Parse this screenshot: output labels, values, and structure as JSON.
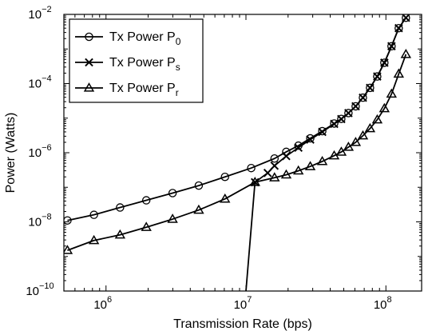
{
  "chart_data": {
    "type": "line",
    "xlabel": "Transmission Rate (bps)",
    "ylabel": "Power (Watts)",
    "x_scale": "log",
    "y_scale": "log",
    "xlim": [
      500000,
      180000000
    ],
    "ylim": [
      1e-10,
      0.01
    ],
    "x_ticks": [
      {
        "value": 1000000,
        "base": "10",
        "exp": "6"
      },
      {
        "value": 10000000,
        "base": "10",
        "exp": "7"
      },
      {
        "value": 100000000,
        "base": "10",
        "exp": "8"
      }
    ],
    "y_ticks": [
      {
        "value": 1e-10,
        "base": "10",
        "exp": "−10"
      },
      {
        "value": 1e-08,
        "base": "10",
        "exp": "−8"
      },
      {
        "value": 1e-06,
        "base": "10",
        "exp": "−6"
      },
      {
        "value": 0.0001,
        "base": "10",
        "exp": "−4"
      },
      {
        "value": 0.01,
        "base": "10",
        "exp": "−2"
      }
    ],
    "grid": false,
    "legend_position": "top-left",
    "series": [
      {
        "name": "Tx Power P",
        "subscript": "0",
        "marker": "circle",
        "color": "#000000",
        "x": [
          530000,
          820000,
          1260000,
          1940000,
          2990000,
          4600000,
          7080000,
          10900000,
          16000000,
          19400000,
          23700000,
          28800000,
          35100000,
          42700000,
          48000000,
          54000000,
          60800000,
          68500000,
          77000000,
          86700000,
          97500000,
          109700000,
          123500000,
          139000000
        ],
        "y": [
          1.1e-08,
          1.6e-08,
          2.6e-08,
          4.2e-08,
          6.8e-08,
          1.12e-07,
          2e-07,
          3.6e-07,
          6.8e-07,
          1.06e-06,
          1.6e-06,
          2.6e-06,
          4.2e-06,
          7e-06,
          9.5e-06,
          1.4e-05,
          2.2e-05,
          3.9e-05,
          7.5e-05,
          0.00016,
          0.0004,
          0.0012,
          0.004,
          0.008
        ]
      },
      {
        "name": "Tx Power P",
        "subscript": "s",
        "marker": "x",
        "color": "#000000",
        "x": [
          10000000,
          11600000,
          14300000,
          16000000,
          19400000,
          23700000,
          28800000,
          35100000,
          42700000,
          48000000,
          54000000,
          60800000,
          68500000,
          77000000,
          86700000,
          97500000,
          109700000,
          123500000,
          139000000
        ],
        "y": [
          1e-10,
          1.4e-07,
          2.6e-07,
          4.2e-07,
          8e-07,
          1.4e-06,
          2.4e-06,
          4e-06,
          6.8e-06,
          9.4e-06,
          1.4e-05,
          2.2e-05,
          3.9e-05,
          7.5e-05,
          0.00016,
          0.0004,
          0.0012,
          0.004,
          0.008
        ]
      },
      {
        "name": "Tx Power P",
        "subscript": "r",
        "marker": "triangle",
        "color": "#000000",
        "x": [
          530000,
          820000,
          1260000,
          1940000,
          2990000,
          4600000,
          7080000,
          11600000,
          16000000,
          19400000,
          23700000,
          28800000,
          35100000,
          42700000,
          48000000,
          54000000,
          60800000,
          68500000,
          77000000,
          86700000,
          97500000,
          109700000,
          123500000,
          139000000
        ],
        "y": [
          1.5e-09,
          2.9e-09,
          4.2e-09,
          7e-09,
          1.2e-08,
          2.2e-08,
          4.6e-08,
          1.4e-07,
          1.9e-07,
          2.3e-07,
          3e-07,
          4e-07,
          5.6e-07,
          8.2e-07,
          1.05e-06,
          1.45e-06,
          2e-06,
          3.1e-06,
          5e-06,
          9e-06,
          1.9e-05,
          5e-05,
          0.00019,
          0.0007
        ]
      }
    ]
  }
}
